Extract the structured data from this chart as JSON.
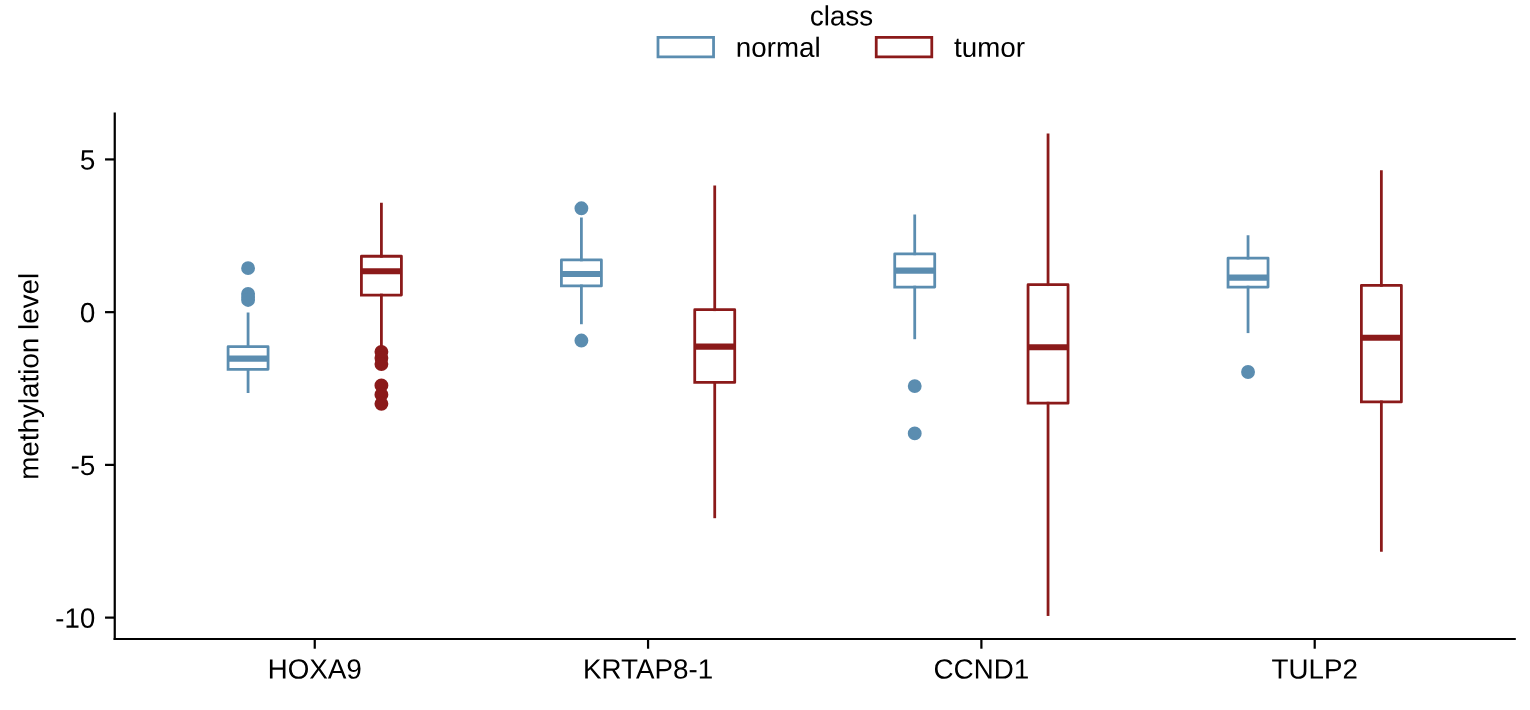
{
  "chart_data": {
    "type": "box",
    "categories": [
      "HOXA9",
      "KRTAP8-1",
      "CCND1",
      "TULP2"
    ],
    "ylabel": "methylation level",
    "legend_title": "class",
    "legend": "top",
    "grid": false,
    "ylim": [
      -10.7,
      6.5
    ],
    "yticks": [
      -10,
      -5,
      0,
      5
    ],
    "series": [
      {
        "name": "normal",
        "color": "#5b8db0",
        "boxes": [
          {
            "low": -2.6,
            "q1": -1.87,
            "median": -1.52,
            "q3": -1.13,
            "high": -0.06,
            "outliers": [
              1.44,
              0.6,
              0.5,
              0.4
            ]
          },
          {
            "low": -0.35,
            "q1": 0.86,
            "median": 1.25,
            "q3": 1.71,
            "high": 3.05,
            "outliers": [
              3.4,
              -0.93
            ]
          },
          {
            "low": -0.84,
            "q1": 0.82,
            "median": 1.36,
            "q3": 1.91,
            "high": 3.15,
            "outliers": [
              -2.42,
              -3.97
            ]
          },
          {
            "low": -0.64,
            "q1": 0.82,
            "median": 1.13,
            "q3": 1.77,
            "high": 2.47,
            "outliers": [
              -1.96
            ]
          }
        ]
      },
      {
        "name": "tumor",
        "color": "#8b1a1a",
        "boxes": [
          {
            "low": -1.13,
            "q1": 0.56,
            "median": 1.34,
            "q3": 1.83,
            "high": 3.54,
            "outliers": [
              -1.3,
              -1.5,
              -1.7,
              -2.4,
              -2.7,
              -3.0
            ]
          },
          {
            "low": -6.7,
            "q1": -2.3,
            "median": -1.13,
            "q3": 0.08,
            "high": 4.1
          },
          {
            "low": -9.9,
            "q1": -2.98,
            "median": -1.15,
            "q3": 0.9,
            "high": 5.8
          },
          {
            "low": -7.8,
            "q1": -2.94,
            "median": -0.84,
            "q3": 0.88,
            "high": 4.6
          }
        ]
      }
    ]
  }
}
